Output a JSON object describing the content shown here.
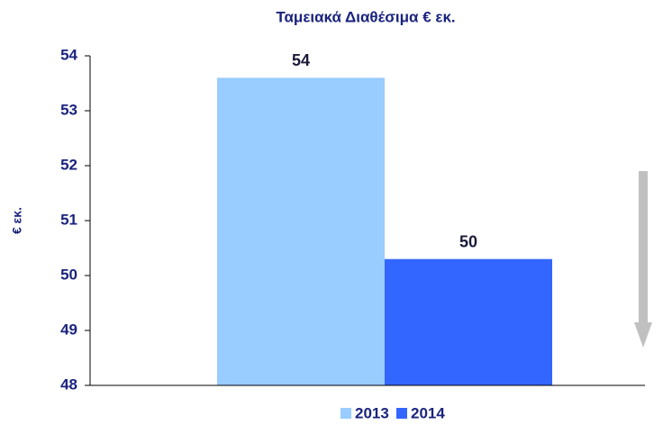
{
  "chart_data": {
    "type": "bar",
    "title": "Ταμειακά Διαθέσιμα € εκ.",
    "y_label": "€ εκ.",
    "categories": [
      null
    ],
    "series": [
      {
        "name": "2013",
        "color": "#99ccff",
        "values": [
          53.6
        ],
        "value_labels": [
          "54"
        ]
      },
      {
        "name": "2014",
        "color": "#3366ff",
        "values": [
          50.3
        ],
        "value_labels": [
          "50"
        ]
      }
    ],
    "ylim": [
      48,
      54
    ],
    "yticks": [
      48,
      49,
      50,
      51,
      52,
      53,
      54
    ]
  }
}
